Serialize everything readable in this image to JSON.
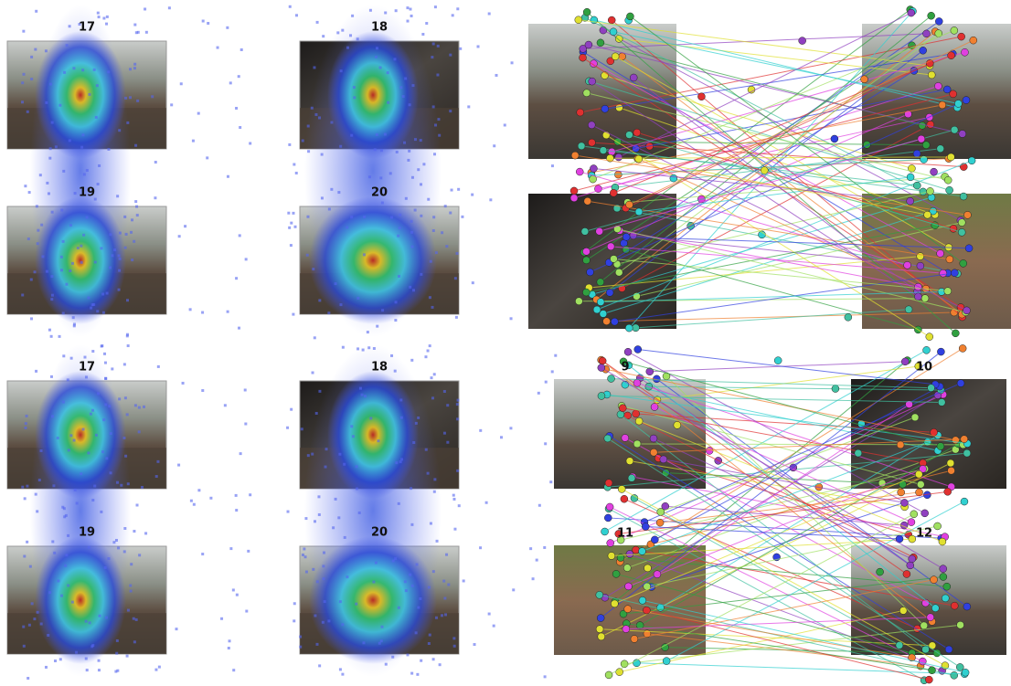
{
  "heatmap_groups": [
    [
      "17",
      "18",
      "19",
      "20"
    ],
    [
      "17",
      "18",
      "19",
      "20"
    ]
  ],
  "match_labels": [
    "9",
    "10",
    "11",
    "12"
  ]
}
